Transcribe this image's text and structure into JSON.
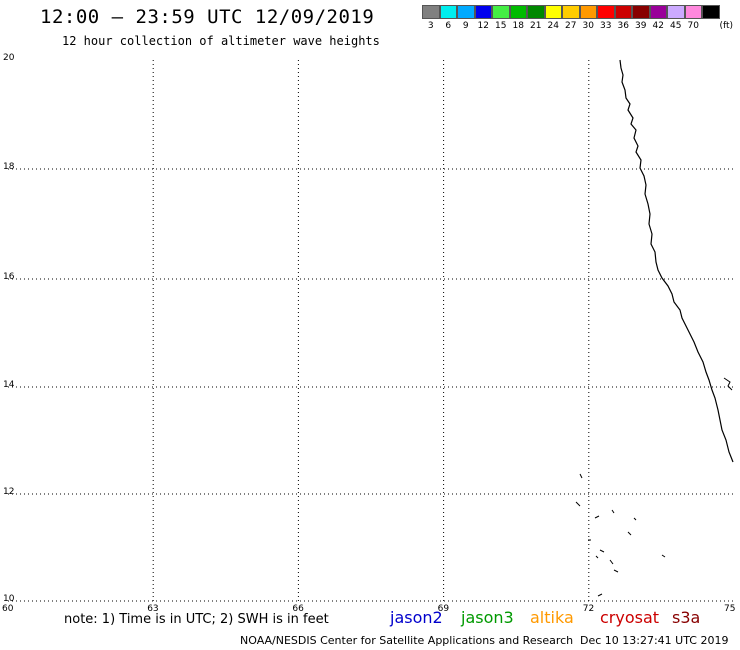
{
  "header": {
    "title": "12:00 – 23:59 UTC 12/09/2019",
    "subtitle": "12 hour collection of altimeter wave heights"
  },
  "scale": {
    "swatches": [
      {
        "color": "#808080",
        "label": "3"
      },
      {
        "color": "#00eeee",
        "label": "6"
      },
      {
        "color": "#00aaff",
        "label": "9"
      },
      {
        "color": "#0000ee",
        "label": "12"
      },
      {
        "color": "#44ee44",
        "label": "15"
      },
      {
        "color": "#00bb00",
        "label": "18"
      },
      {
        "color": "#008800",
        "label": "21"
      },
      {
        "color": "#ffff00",
        "label": "24"
      },
      {
        "color": "#ffcc00",
        "label": "27"
      },
      {
        "color": "#ff9900",
        "label": "30"
      },
      {
        "color": "#ff0000",
        "label": "33"
      },
      {
        "color": "#cc0000",
        "label": "36"
      },
      {
        "color": "#880000",
        "label": "39"
      },
      {
        "color": "#990099",
        "label": "42"
      },
      {
        "color": "#ccaaff",
        "label": "45"
      },
      {
        "color": "#ff88dd",
        "label": "70"
      },
      {
        "color": "#000000",
        "label": ""
      }
    ],
    "unit": "(ft)"
  },
  "map": {
    "lon_range": [
      60,
      75
    ],
    "lat_range": [
      10,
      20
    ],
    "x_ticks": [
      "60",
      "63",
      "66",
      "69",
      "72",
      "75"
    ],
    "y_ticks": [
      "20",
      "18",
      "16",
      "14",
      "12",
      "10"
    ]
  },
  "footer": {
    "note": "note: 1) Time is in UTC; 2) SWH is in feet",
    "satellites": [
      {
        "name": "jason2",
        "color": "#0000cc"
      },
      {
        "name": "jason3",
        "color": "#009900"
      },
      {
        "name": "altika",
        "color": "#ff9900"
      },
      {
        "name": "cryosat",
        "color": "#cc0000"
      },
      {
        "name": "s3a",
        "color": "#880000"
      }
    ],
    "credit": "NOAA/NESDIS Center for Satellite Applications and Research",
    "timestamp": "Dec 10 13:27:41 UTC 2019"
  }
}
